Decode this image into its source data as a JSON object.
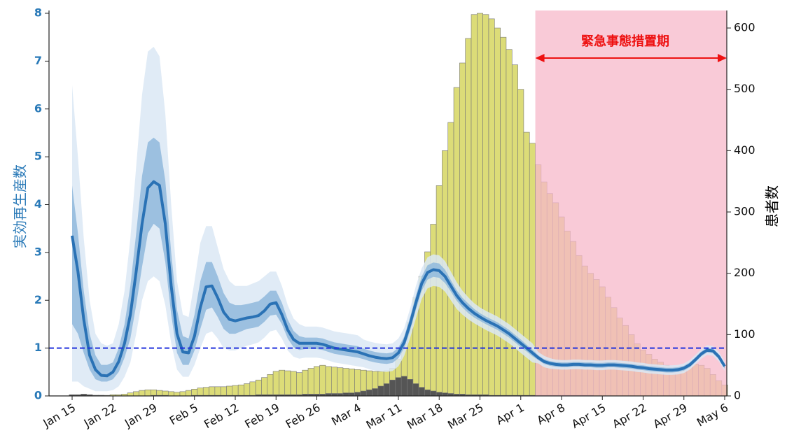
{
  "chart_data": {
    "type": "combo",
    "y_label": "実効再生産数",
    "y2_label": "患者数",
    "annotation": "緊急事態措置期",
    "annotation_color": "#ee1111",
    "shade_from_index": 80,
    "shade_color": "#f7b8ca",
    "reference_line": {
      "value": 1,
      "color": "#2233dd"
    },
    "ylim": [
      0,
      8
    ],
    "yticks": [
      0,
      1,
      2,
      3,
      4,
      5,
      6,
      7,
      8
    ],
    "y_color": "#2a7ab8",
    "y2lim": [
      0,
      624
    ],
    "y2ticks": [
      0,
      100,
      200,
      300,
      400,
      500,
      600
    ],
    "categories": [
      "Jan 15",
      null,
      null,
      null,
      null,
      null,
      null,
      "Jan 22",
      null,
      null,
      null,
      null,
      null,
      null,
      "Jan 29",
      null,
      null,
      null,
      null,
      null,
      null,
      "Feb 5",
      null,
      null,
      null,
      null,
      null,
      null,
      "Feb 12",
      null,
      null,
      null,
      null,
      null,
      null,
      "Feb 19",
      null,
      null,
      null,
      null,
      null,
      null,
      "Feb 26",
      null,
      null,
      null,
      null,
      null,
      null,
      "Mar 4",
      null,
      null,
      null,
      null,
      null,
      null,
      "Mar 11",
      null,
      null,
      null,
      null,
      null,
      null,
      "Mar 18",
      null,
      null,
      null,
      null,
      null,
      null,
      "Mar 25",
      null,
      null,
      null,
      null,
      null,
      null,
      "Apr 1",
      null,
      null,
      null,
      null,
      null,
      null,
      "Apr 8",
      null,
      null,
      null,
      null,
      null,
      null,
      "Apr 15",
      null,
      null,
      null,
      null,
      null,
      null,
      "Apr 22",
      null,
      null,
      null,
      null,
      null,
      null,
      "Apr 29",
      null,
      null,
      null,
      null,
      null,
      null,
      "May 6"
    ],
    "series": [
      {
        "type": "bar",
        "axis": "y2",
        "color": "#dcdc78",
        "values": [
          1,
          1,
          1,
          1,
          1,
          1,
          1,
          2,
          2,
          3,
          5,
          7,
          9,
          10,
          10,
          9,
          8,
          7,
          6,
          7,
          9,
          11,
          13,
          14,
          15,
          15,
          15,
          16,
          17,
          18,
          20,
          23,
          26,
          30,
          35,
          40,
          42,
          41,
          40,
          38,
          42,
          45,
          48,
          50,
          48,
          47,
          46,
          45,
          44,
          43,
          42,
          41,
          40,
          40,
          41,
          45,
          60,
          85,
          120,
          160,
          195,
          235,
          280,
          343,
          400,
          446,
          503,
          543,
          583,
          622,
          624,
          622,
          615,
          600,
          585,
          565,
          540,
          500,
          430,
          412,
          377,
          349,
          330,
          315,
          292,
          269,
          252,
          229,
          212,
          200,
          190,
          178,
          161,
          144,
          127,
          115,
          100,
          85,
          75,
          68,
          60,
          55,
          50,
          47,
          47,
          48,
          50,
          52,
          50,
          45,
          35,
          25,
          18
        ]
      },
      {
        "type": "bar",
        "axis": "y2",
        "color": "#555555",
        "values": [
          2,
          2,
          3,
          2,
          1,
          1,
          0,
          0,
          0,
          0,
          0,
          0,
          0,
          0,
          1,
          1,
          1,
          0,
          0,
          0,
          0,
          1,
          1,
          1,
          1,
          1,
          1,
          1,
          1,
          1,
          1,
          1,
          2,
          2,
          2,
          2,
          2,
          2,
          2,
          2,
          3,
          3,
          3,
          3,
          4,
          4,
          4,
          5,
          5,
          6,
          8,
          10,
          12,
          16,
          20,
          26,
          30,
          32,
          27,
          20,
          14,
          10,
          8,
          6,
          5,
          4,
          3,
          3,
          2,
          2,
          2,
          2,
          1,
          1,
          1,
          1,
          1,
          1,
          1,
          1,
          1,
          1,
          1,
          1,
          1,
          1,
          1,
          1,
          1,
          1,
          0,
          0,
          0,
          0,
          0,
          0,
          0,
          0,
          0,
          0,
          0,
          0,
          0,
          0,
          0,
          0,
          0,
          0,
          0,
          0,
          0,
          0,
          0
        ]
      },
      {
        "type": "line",
        "axis": "y",
        "color": "#2a72b5",
        "values": [
          3.35,
          2.6,
          1.6,
          0.85,
          0.55,
          0.43,
          0.42,
          0.5,
          0.72,
          1.1,
          1.7,
          2.6,
          3.6,
          4.35,
          4.48,
          4.4,
          3.6,
          2.3,
          1.3,
          0.92,
          0.9,
          1.25,
          1.85,
          2.28,
          2.3,
          2.05,
          1.75,
          1.6,
          1.57,
          1.6,
          1.63,
          1.65,
          1.68,
          1.78,
          1.92,
          1.95,
          1.7,
          1.38,
          1.18,
          1.1,
          1.1,
          1.1,
          1.1,
          1.08,
          1.04,
          1.0,
          0.98,
          0.96,
          0.94,
          0.92,
          0.88,
          0.84,
          0.81,
          0.79,
          0.78,
          0.8,
          0.9,
          1.12,
          1.5,
          1.95,
          2.35,
          2.58,
          2.64,
          2.62,
          2.5,
          2.3,
          2.1,
          1.95,
          1.83,
          1.73,
          1.65,
          1.58,
          1.52,
          1.46,
          1.38,
          1.3,
          1.2,
          1.1,
          1.0,
          0.9,
          0.8,
          0.72,
          0.68,
          0.66,
          0.65,
          0.65,
          0.66,
          0.66,
          0.65,
          0.65,
          0.64,
          0.64,
          0.65,
          0.65,
          0.64,
          0.63,
          0.62,
          0.6,
          0.59,
          0.57,
          0.56,
          0.55,
          0.54,
          0.54,
          0.55,
          0.58,
          0.65,
          0.76,
          0.88,
          0.96,
          0.94,
          0.82,
          0.62
        ],
        "inner_band": {
          "color": "#8fb8dc",
          "lower": [
            1.5,
            1.3,
            0.9,
            0.55,
            0.35,
            0.3,
            0.3,
            0.35,
            0.5,
            0.8,
            1.2,
            1.9,
            2.7,
            3.4,
            3.6,
            3.5,
            2.8,
            1.7,
            0.9,
            0.65,
            0.65,
            0.95,
            1.4,
            1.8,
            1.85,
            1.65,
            1.4,
            1.3,
            1.3,
            1.35,
            1.4,
            1.42,
            1.45,
            1.55,
            1.68,
            1.7,
            1.5,
            1.2,
            1.02,
            0.96,
            0.98,
            0.98,
            0.98,
            0.96,
            0.92,
            0.88,
            0.86,
            0.84,
            0.82,
            0.8,
            0.77,
            0.73,
            0.7,
            0.68,
            0.67,
            0.69,
            0.79,
            1.0,
            1.36,
            1.8,
            2.2,
            2.43,
            2.49,
            2.47,
            2.36,
            2.18,
            1.99,
            1.85,
            1.73,
            1.64,
            1.57,
            1.5,
            1.44,
            1.38,
            1.3,
            1.22,
            1.12,
            1.02,
            0.93,
            0.83,
            0.75,
            0.67,
            0.63,
            0.61,
            0.6,
            0.6,
            0.61,
            0.61,
            0.6,
            0.6,
            0.59,
            0.59,
            0.6,
            0.6,
            0.59,
            0.58,
            0.57,
            0.55,
            0.54,
            0.52,
            0.51,
            0.5,
            0.49,
            0.49,
            0.5,
            0.53,
            0.6,
            0.71,
            0.83,
            0.91,
            0.89,
            0.77,
            0.57
          ],
          "upper": [
            4.4,
            3.4,
            2.2,
            1.3,
            0.85,
            0.65,
            0.65,
            0.7,
            1.0,
            1.5,
            2.3,
            3.4,
            4.6,
            5.3,
            5.4,
            5.3,
            4.5,
            3.0,
            1.8,
            1.25,
            1.2,
            1.7,
            2.4,
            2.8,
            2.8,
            2.5,
            2.15,
            1.95,
            1.9,
            1.9,
            1.92,
            1.95,
            1.98,
            2.08,
            2.2,
            2.2,
            1.95,
            1.6,
            1.36,
            1.25,
            1.22,
            1.22,
            1.22,
            1.2,
            1.16,
            1.12,
            1.1,
            1.08,
            1.06,
            1.04,
            0.99,
            0.95,
            0.92,
            0.9,
            0.89,
            0.91,
            1.01,
            1.24,
            1.64,
            2.1,
            2.5,
            2.73,
            2.79,
            2.77,
            2.64,
            2.42,
            2.21,
            2.05,
            1.93,
            1.82,
            1.73,
            1.66,
            1.6,
            1.54,
            1.46,
            1.38,
            1.28,
            1.18,
            1.07,
            0.97,
            0.85,
            0.77,
            0.73,
            0.71,
            0.7,
            0.7,
            0.71,
            0.71,
            0.7,
            0.7,
            0.69,
            0.69,
            0.7,
            0.7,
            0.69,
            0.68,
            0.67,
            0.65,
            0.64,
            0.62,
            0.61,
            0.6,
            0.59,
            0.59,
            0.6,
            0.63,
            0.7,
            0.81,
            0.93,
            1.01,
            0.99,
            0.87,
            0.67
          ]
        },
        "outer_band": {
          "color": "#dbe8f4",
          "lower": [
            0.3,
            0.3,
            0.2,
            0.15,
            0.1,
            0.1,
            0.1,
            0.12,
            0.2,
            0.4,
            0.7,
            1.3,
            2.0,
            2.4,
            2.5,
            2.4,
            1.9,
            1.1,
            0.55,
            0.4,
            0.4,
            0.65,
            1.0,
            1.3,
            1.35,
            1.2,
            1.0,
            0.95,
            0.95,
            1.0,
            1.05,
            1.08,
            1.12,
            1.22,
            1.35,
            1.38,
            1.2,
            0.95,
            0.82,
            0.78,
            0.8,
            0.8,
            0.8,
            0.78,
            0.74,
            0.7,
            0.68,
            0.66,
            0.64,
            0.62,
            0.6,
            0.56,
            0.53,
            0.51,
            0.5,
            0.52,
            0.62,
            0.84,
            1.2,
            1.62,
            2.03,
            2.25,
            2.3,
            2.28,
            2.18,
            2.0,
            1.82,
            1.7,
            1.6,
            1.52,
            1.45,
            1.38,
            1.32,
            1.26,
            1.18,
            1.1,
            1.0,
            0.9,
            0.8,
            0.7,
            0.68,
            0.6,
            0.57,
            0.56,
            0.55,
            0.55,
            0.56,
            0.56,
            0.55,
            0.55,
            0.54,
            0.54,
            0.55,
            0.55,
            0.54,
            0.53,
            0.52,
            0.5,
            0.49,
            0.47,
            0.46,
            0.45,
            0.44,
            0.44,
            0.45,
            0.48,
            0.55,
            0.66,
            0.78,
            0.86,
            0.84,
            0.72,
            0.52
          ],
          "upper": [
            6.5,
            5.0,
            3.3,
            2.0,
            1.3,
            1.1,
            1.05,
            1.1,
            1.5,
            2.2,
            3.3,
            4.8,
            6.3,
            7.2,
            7.3,
            7.1,
            5.9,
            4.0,
            2.4,
            1.7,
            1.65,
            2.4,
            3.2,
            3.55,
            3.55,
            3.1,
            2.65,
            2.4,
            2.3,
            2.3,
            2.3,
            2.35,
            2.4,
            2.5,
            2.6,
            2.6,
            2.3,
            1.9,
            1.62,
            1.5,
            1.45,
            1.45,
            1.45,
            1.43,
            1.39,
            1.35,
            1.33,
            1.31,
            1.29,
            1.27,
            1.18,
            1.14,
            1.11,
            1.09,
            1.08,
            1.1,
            1.2,
            1.42,
            1.82,
            2.3,
            2.67,
            2.9,
            2.96,
            2.94,
            2.82,
            2.6,
            2.38,
            2.2,
            2.06,
            1.94,
            1.85,
            1.78,
            1.72,
            1.66,
            1.58,
            1.5,
            1.4,
            1.3,
            1.2,
            1.1,
            0.92,
            0.84,
            0.79,
            0.76,
            0.75,
            0.75,
            0.76,
            0.76,
            0.75,
            0.75,
            0.74,
            0.74,
            0.75,
            0.75,
            0.74,
            0.73,
            0.72,
            0.7,
            0.69,
            0.67,
            0.66,
            0.65,
            0.64,
            0.64,
            0.65,
            0.68,
            0.75,
            0.86,
            0.98,
            1.06,
            1.04,
            0.92,
            0.72
          ]
        }
      }
    ]
  }
}
